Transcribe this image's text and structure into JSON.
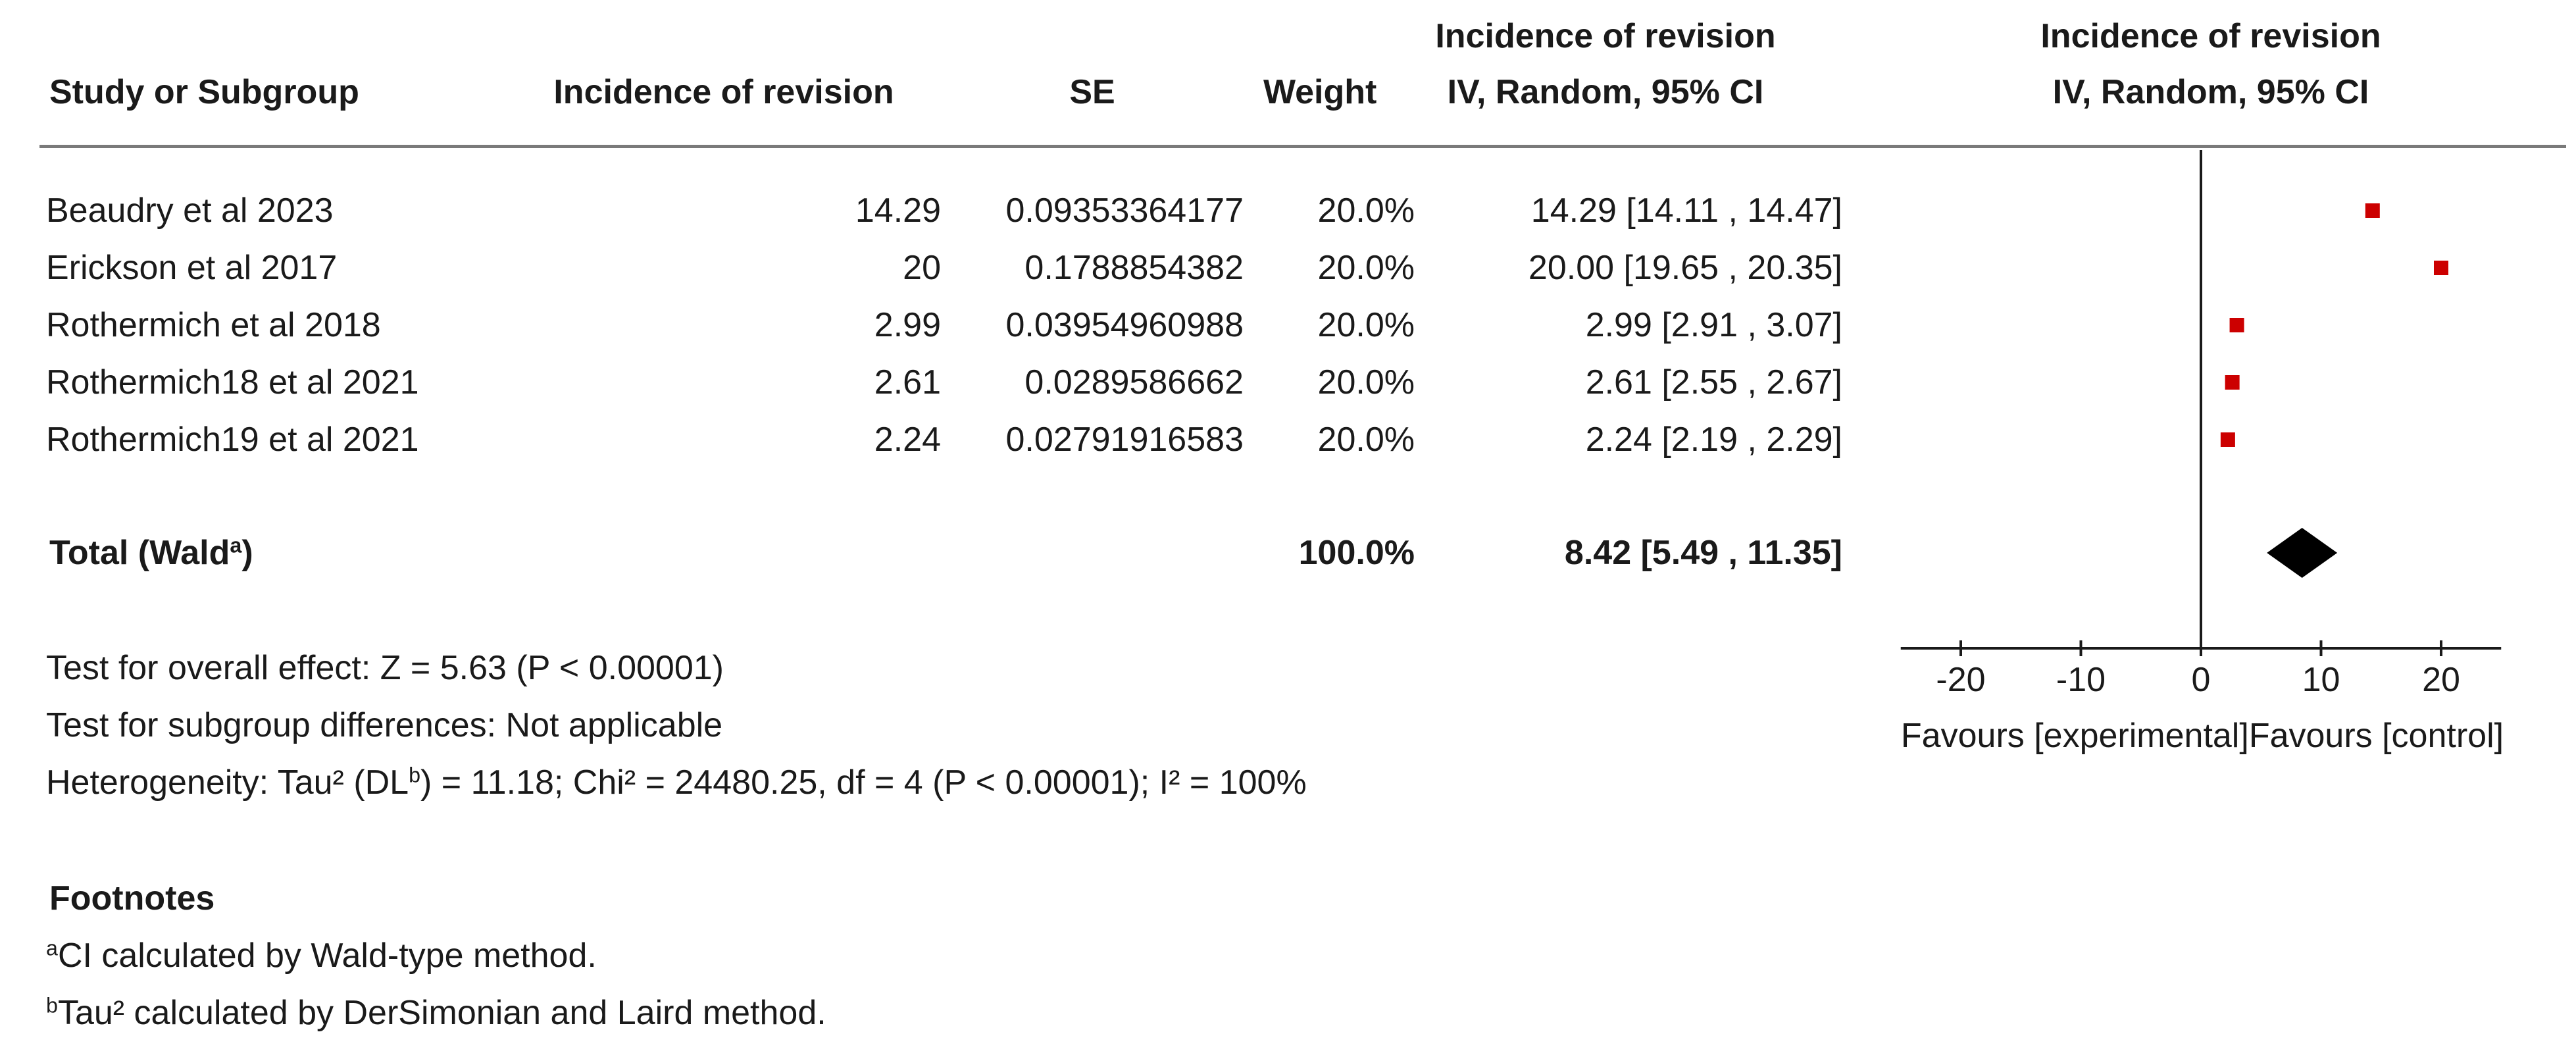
{
  "headers": {
    "study": "Study or Subgroup",
    "incidence": "Incidence of revision",
    "se": "SE",
    "weight": "Weight",
    "effect_top": "Incidence of revision",
    "effect_bottom": "IV, Random, 95% CI",
    "plot_top": "Incidence of revision",
    "plot_bottom": "IV, Random, 95% CI"
  },
  "studies": [
    {
      "name": "Beaudry et al 2023",
      "incidence": "14.29",
      "se": "0.09353364177",
      "weight": "20.0%",
      "ci_text": "14.29 [14.11 , 14.47]"
    },
    {
      "name": "Erickson et al 2017",
      "incidence": "20",
      "se": "0.1788854382",
      "weight": "20.0%",
      "ci_text": "20.00 [19.65 , 20.35]"
    },
    {
      "name": "Rothermich et al 2018",
      "incidence": "2.99",
      "se": "0.03954960988",
      "weight": "20.0%",
      "ci_text": "2.99 [2.91 , 3.07]"
    },
    {
      "name": "Rothermich18 et al 2021",
      "incidence": "2.61",
      "se": "0.0289586662",
      "weight": "20.0%",
      "ci_text": "2.61 [2.55 , 2.67]"
    },
    {
      "name": "Rothermich19 et al 2021",
      "incidence": "2.24",
      "se": "0.02791916583",
      "weight": "20.0%",
      "ci_text": "2.24 [2.19 , 2.29]"
    }
  ],
  "total": {
    "label": "Total (Wald",
    "label_sup": "a",
    "label_end": ")",
    "weight": "100.0%",
    "ci_text": "8.42 [5.49 , 11.35]"
  },
  "tests": {
    "overall": "Test for overall effect: Z = 5.63 (P < 0.00001)",
    "subgroup": "Test for subgroup differences: Not applicable",
    "het_pre": "Heterogeneity: Tau² (DL",
    "het_sup": "b",
    "het_post": ") = 11.18; Chi² = 24480.25, df = 4 (P < 0.00001); I² = 100%"
  },
  "footnotes": {
    "title": "Footnotes",
    "a_mark": "a",
    "a_text": "CI calculated by Wald-type method.",
    "b_mark": "b",
    "b_text": "Tau² calculated by DerSimonian and Laird method."
  },
  "chart_data": {
    "type": "scatter",
    "subtype": "forest-plot",
    "title_lines": [
      "Incidence of revision",
      "IV, Random, 95% CI"
    ],
    "xlim": [
      -25,
      25
    ],
    "ticks": [
      -20,
      -10,
      0,
      10,
      20
    ],
    "tick_labels": [
      "-20",
      "-10",
      "0",
      "10",
      "20"
    ],
    "favours_left": "Favours [experimental]",
    "favours_right": "Favours [control]",
    "marker_color": "#cc0000",
    "diamond_color": "#000000",
    "points": [
      {
        "study": "Beaudry et al 2023",
        "estimate": 14.29,
        "lower": 14.11,
        "upper": 14.47
      },
      {
        "study": "Erickson et al 2017",
        "estimate": 20.0,
        "lower": 19.65,
        "upper": 20.35
      },
      {
        "study": "Rothermich et al 2018",
        "estimate": 2.99,
        "lower": 2.91,
        "upper": 3.07
      },
      {
        "study": "Rothermich18 et al 2021",
        "estimate": 2.61,
        "lower": 2.55,
        "upper": 2.67
      },
      {
        "study": "Rothermich19 et al 2021",
        "estimate": 2.24,
        "lower": 2.19,
        "upper": 2.29
      }
    ],
    "pooled": {
      "estimate": 8.42,
      "lower": 5.49,
      "upper": 11.35
    }
  }
}
